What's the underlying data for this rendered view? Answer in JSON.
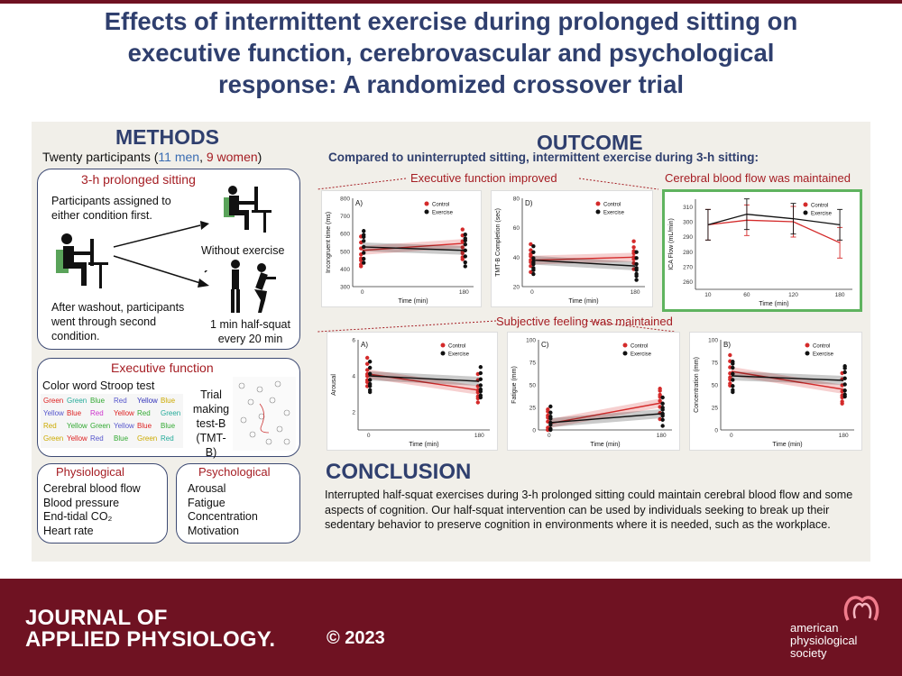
{
  "title": [
    "Effects of intermittent exercise during prolonged sitting on",
    "executive function, cerebrovascular and psychological",
    "response: A randomized crossover trial"
  ],
  "methods": {
    "heading": "METHODS",
    "participants_pre": "Twenty participants (",
    "men": "11 men",
    "comma": ", ",
    "women": "9 women",
    "participants_post": ")",
    "box1": {
      "heading": "3-h prolonged sitting",
      "assign": [
        "Participants assigned to",
        "either condition first."
      ],
      "without": "Without exercise",
      "washout": [
        "After washout, participants",
        "went through second",
        "condition."
      ],
      "squat": [
        "1 min half-squat",
        "every 20 min"
      ]
    },
    "box2": {
      "heading": "Executive function",
      "stroop_title": "Color word Stroop test",
      "tmt": [
        "Trial",
        "making",
        "test-B",
        "(TMT-B)"
      ],
      "stroop_words": [
        [
          "Green",
          "#d22"
        ],
        [
          "Green",
          "#2a9"
        ],
        [
          "Blue",
          "#3a3"
        ],
        [
          "Red",
          "#55c"
        ],
        [
          "Yellow",
          "#33b"
        ],
        [
          "Blue",
          "#ca0"
        ],
        [
          "Yellow",
          "#55c"
        ],
        [
          "Blue",
          "#d22"
        ],
        [
          "Red",
          "#c3c"
        ],
        [
          "Yellow",
          "#d22"
        ],
        [
          "Red",
          "#3a3"
        ],
        [
          "Green",
          "#2a9"
        ],
        [
          "Red",
          "#ca0"
        ],
        [
          "Yellow",
          "#3a3"
        ],
        [
          "Green",
          "#3a3"
        ],
        [
          "Yellow",
          "#55c"
        ],
        [
          "Blue",
          "#d22"
        ],
        [
          "Blue",
          "#3a3"
        ],
        [
          "Green",
          "#ca0"
        ],
        [
          "Yellow",
          "#d22"
        ],
        [
          "Red",
          "#55c"
        ],
        [
          "Blue",
          "#3a3"
        ],
        [
          "Green",
          "#ca0"
        ],
        [
          "Red",
          "#2a9"
        ]
      ]
    },
    "physio": {
      "heading": "Physiological",
      "items": [
        "Cerebral blood flow",
        "Blood pressure",
        "End-tidal CO₂",
        "Heart rate"
      ]
    },
    "psych": {
      "heading": "Psychological",
      "items": [
        "Arousal",
        "Fatigue",
        "Concentration",
        "Motivation"
      ]
    }
  },
  "outcome": {
    "heading": "OUTCOME",
    "subtitle": "Compared to uninterrupted sitting, intermittent exercise during 3-h sitting:",
    "exec_label": "Executive function improved",
    "cbf_label": "Cerebral blood flow was maintained",
    "subj_label": "Subjective feeling was maintained"
  },
  "legend": {
    "control": "Control",
    "exercise": "Exercise"
  },
  "colors": {
    "control": "#d42a2a",
    "exercise": "#111111",
    "navy": "#2f3f6e",
    "maroon": "#6f1222",
    "green_border": "#5fb35f"
  },
  "chart_data": [
    {
      "type": "scatter",
      "panel": "A)",
      "xlabel": "Time (min)",
      "ylabel": "Incongruent time (ms)",
      "x": [
        0,
        180
      ],
      "xticks": [
        "0",
        "180"
      ],
      "ylim": [
        300,
        800
      ],
      "yticks": [
        300,
        400,
        500,
        600,
        700,
        800
      ],
      "series": [
        {
          "name": "Control",
          "values": [
            505,
            545
          ]
        },
        {
          "name": "Exercise",
          "values": [
            525,
            505
          ]
        }
      ]
    },
    {
      "type": "scatter",
      "panel": "D)",
      "xlabel": "Time (min)",
      "ylabel": "TMT-B Completion (sec)",
      "x": [
        0,
        180
      ],
      "xticks": [
        "0",
        "180"
      ],
      "ylim": [
        20,
        80
      ],
      "yticks": [
        20,
        40,
        60,
        80
      ],
      "series": [
        {
          "name": "Control",
          "values": [
            38,
            40
          ]
        },
        {
          "name": "Exercise",
          "values": [
            38,
            34
          ]
        }
      ]
    },
    {
      "type": "line",
      "xlabel": "Time (min)",
      "ylabel": "ICA Flow (mL/min)",
      "x": [
        10,
        60,
        120,
        180
      ],
      "ylim": [
        255,
        315
      ],
      "yticks": [
        260,
        270,
        280,
        290,
        300,
        310
      ],
      "series": [
        {
          "name": "Control",
          "values": [
            298,
            301,
            300,
            286
          ]
        },
        {
          "name": "Exercise",
          "values": [
            298,
            305,
            302,
            298
          ]
        }
      ]
    },
    {
      "type": "scatter",
      "panel": "A)",
      "xlabel": "Time (min)",
      "ylabel": "Arousal",
      "x": [
        0,
        180
      ],
      "xticks": [
        "0",
        "180"
      ],
      "ylim": [
        1,
        6
      ],
      "yticks": [
        2,
        4,
        6
      ],
      "series": [
        {
          "name": "Control",
          "values": [
            4.1,
            3.2
          ]
        },
        {
          "name": "Exercise",
          "values": [
            4.0,
            3.7
          ]
        }
      ]
    },
    {
      "type": "scatter",
      "panel": "C)",
      "xlabel": "Time (min)",
      "ylabel": "Fatigue (mm)",
      "x": [
        0,
        180
      ],
      "xticks": [
        "0",
        "180"
      ],
      "ylim": [
        0,
        100
      ],
      "yticks": [
        0,
        25,
        50,
        75,
        100
      ],
      "series": [
        {
          "name": "Control",
          "values": [
            7,
            30
          ]
        },
        {
          "name": "Exercise",
          "values": [
            8,
            18
          ]
        }
      ]
    },
    {
      "type": "scatter",
      "panel": "B)",
      "xlabel": "Time (min)",
      "ylabel": "Concentration (mm)",
      "x": [
        0,
        180
      ],
      "xticks": [
        "0",
        "180"
      ],
      "ylim": [
        0,
        100
      ],
      "yticks": [
        0,
        25,
        50,
        75,
        100
      ],
      "series": [
        {
          "name": "Control",
          "values": [
            65,
            45
          ]
        },
        {
          "name": "Exercise",
          "values": [
            60,
            55
          ]
        }
      ]
    }
  ],
  "conclusion": {
    "heading": "CONCLUSION",
    "text": "Interrupted half-squat exercises during 3-h prolonged sitting could maintain cerebral blood flow and some aspects of cognition. Our half-squat intervention can be used by individuals seeking to break up their sedentary behavior to preserve cognition in environments where it is needed, such as the workplace."
  },
  "footer": {
    "journal1": "JOURNAL OF",
    "journal2": "APPLIED PHYSIOLOGY.",
    "copyright": "© 2023",
    "society": [
      "american",
      "physiological",
      "society"
    ]
  }
}
